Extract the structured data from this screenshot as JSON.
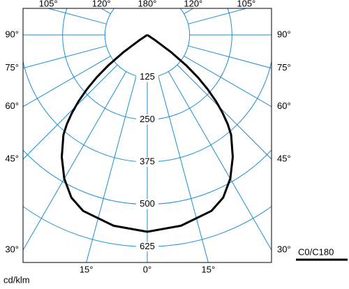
{
  "chart_data": {
    "type": "polar",
    "unit_label": "cd/klm",
    "legend": "C0/C180",
    "rlim": [
      0,
      750
    ],
    "rticks": [
      125,
      250,
      375,
      500,
      625
    ],
    "thetaticks": [
      {
        "value": 0,
        "label": "0°"
      },
      {
        "value": 15,
        "label": "15°"
      },
      {
        "value": 30,
        "label": "30°"
      },
      {
        "value": 45,
        "label": "45°"
      },
      {
        "value": 60,
        "label": "60°"
      },
      {
        "value": 75,
        "label": "75°"
      },
      {
        "value": 90,
        "label": "90°"
      },
      {
        "value": 105,
        "label": "105°"
      },
      {
        "value": 120,
        "label": "120°"
      },
      {
        "value": 135,
        "label": null
      },
      {
        "value": 150,
        "label": null
      },
      {
        "value": 165,
        "label": null
      },
      {
        "value": 180,
        "label": "180°"
      }
    ],
    "grid_color": "#1a8fd0",
    "x": [
      0,
      10,
      20,
      25,
      30,
      35,
      40,
      42,
      44,
      46,
      48,
      50,
      52,
      54,
      56,
      58
    ],
    "series": [
      {
        "name": "C0/C180",
        "color": "#000000",
        "values": [
          581,
          572,
          553,
          530,
          490,
          440,
          385,
          355,
          320,
          282,
          240,
          195,
          145,
          88,
          30,
          0
        ]
      }
    ]
  }
}
